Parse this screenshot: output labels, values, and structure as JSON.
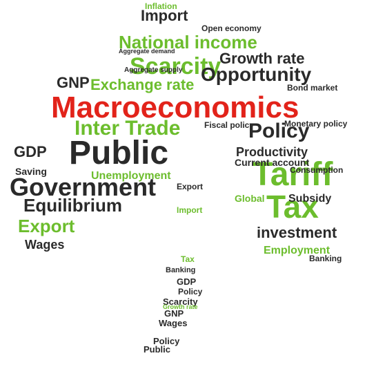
{
  "colors": {
    "green": "#6cbd2d",
    "dark": "#2a2a2a",
    "red": "#e2231a"
  },
  "words": [
    {
      "text": "Macroeconomics",
      "color": "red"
    },
    {
      "text": "Public",
      "color": "dark"
    },
    {
      "text": "Government",
      "color": "dark"
    },
    {
      "text": "Tariff",
      "color": "green"
    },
    {
      "text": "Tax",
      "color": "green"
    },
    {
      "text": "Scarcity",
      "color": "green"
    },
    {
      "text": "National income",
      "color": "green"
    },
    {
      "text": "Opportunity",
      "color": "dark"
    },
    {
      "text": "Inter Trade",
      "color": "green"
    },
    {
      "text": "Policy",
      "color": "dark"
    },
    {
      "text": "Exchange rate",
      "color": "green"
    },
    {
      "text": "Equilibrium",
      "color": "dark"
    },
    {
      "text": "Export",
      "color": "green"
    },
    {
      "text": "investment",
      "color": "dark"
    },
    {
      "text": "Growth rate",
      "color": "dark"
    },
    {
      "text": "Import",
      "color": "dark"
    },
    {
      "text": "GNP",
      "color": "dark"
    },
    {
      "text": "GDP",
      "color": "dark"
    },
    {
      "text": "Productivity",
      "color": "dark"
    },
    {
      "text": "Employment",
      "color": "green"
    },
    {
      "text": "Subsidy",
      "color": "dark"
    },
    {
      "text": "Unemployment",
      "color": "green"
    },
    {
      "text": "Wages",
      "color": "dark"
    },
    {
      "text": "Global",
      "color": "green"
    },
    {
      "text": "Current account",
      "color": "dark"
    },
    {
      "text": "Fiscal policy",
      "color": "dark"
    },
    {
      "text": "Monetary policy",
      "color": "dark"
    },
    {
      "text": "Consumption",
      "color": "dark"
    },
    {
      "text": "Saving",
      "color": "dark"
    },
    {
      "text": "Banking",
      "color": "dark"
    },
    {
      "text": "Inflation",
      "color": "green"
    },
    {
      "text": "Open economy",
      "color": "dark"
    },
    {
      "text": "Aggregate supply",
      "color": "dark"
    },
    {
      "text": "Aggregate demand",
      "color": "dark"
    },
    {
      "text": "Bond market",
      "color": "dark"
    },
    {
      "text": "Scarcity",
      "color": "dark"
    },
    {
      "text": "Policy",
      "color": "dark"
    },
    {
      "text": "Public",
      "color": "dark"
    },
    {
      "text": "GNP",
      "color": "dark"
    },
    {
      "text": "Wages",
      "color": "dark"
    },
    {
      "text": "Tax",
      "color": "green"
    },
    {
      "text": "GDP",
      "color": "dark"
    },
    {
      "text": "Import",
      "color": "green"
    },
    {
      "text": "Policy",
      "color": "dark"
    },
    {
      "text": "Export",
      "color": "dark"
    },
    {
      "text": "Growth rate",
      "color": "green"
    },
    {
      "text": "Banking",
      "color": "dark"
    }
  ]
}
